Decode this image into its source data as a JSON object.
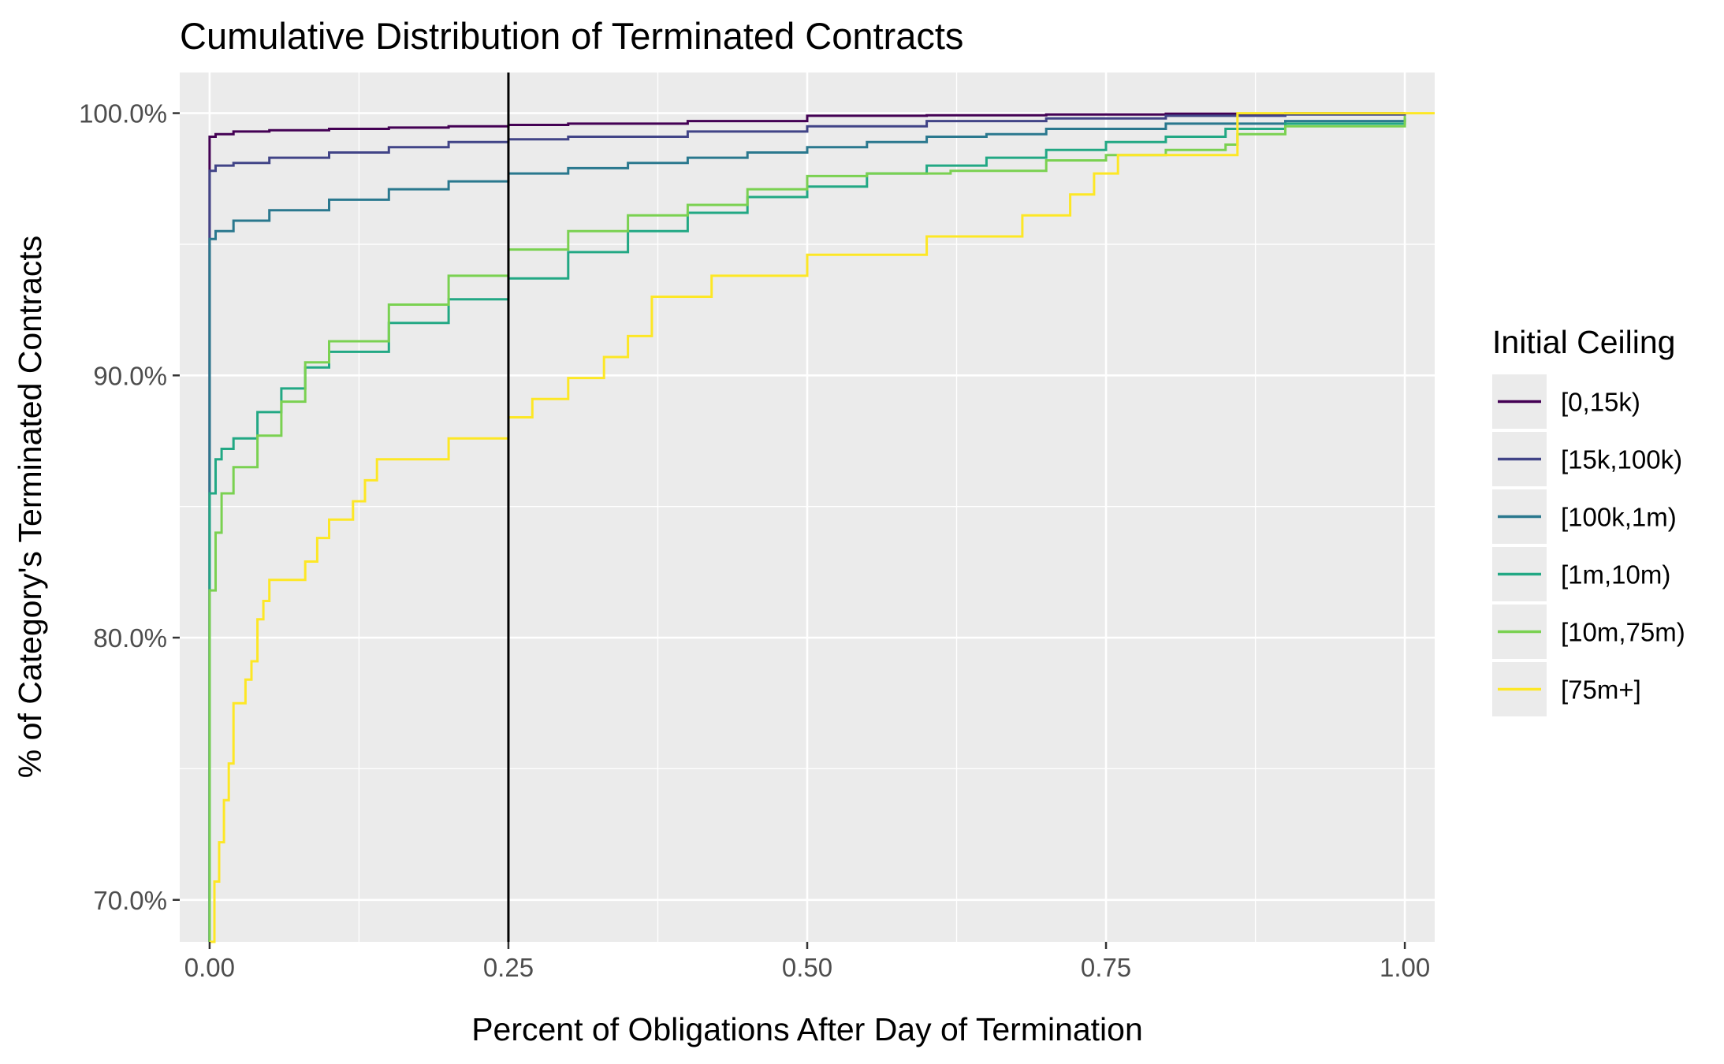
{
  "chart_data": {
    "type": "line",
    "title": "Cumulative Distribution of Terminated Contracts",
    "xlabel": "Percent of Obligations After Day of Termination",
    "ylabel": "% of Category's Terminated Contracts",
    "xlim": [
      -0.025,
      1.025
    ],
    "ylim": [
      0.684,
      1.0155
    ],
    "x_ticks": [
      0.0,
      0.25,
      0.5,
      0.75,
      1.0
    ],
    "x_tick_labels": [
      "0.00",
      "0.25",
      "0.50",
      "0.75",
      "1.00"
    ],
    "y_ticks": [
      0.7,
      0.8,
      0.9,
      1.0
    ],
    "y_tick_labels": [
      "70.0%",
      "80.0%",
      "90.0%",
      "100.0%"
    ],
    "grid": true,
    "vline": 0.25,
    "legend": {
      "title": "Initial Ceiling",
      "position": "right"
    },
    "background": "#ebebeb",
    "series": [
      {
        "name": "[0,15k)",
        "color": "#440154",
        "x": [
          0,
          0,
          0.005,
          0.02,
          0.05,
          0.1,
          0.15,
          0.2,
          0.25,
          0.3,
          0.4,
          0.5,
          0.5,
          0.6,
          0.7,
          0.8,
          0.9,
          1.0
        ],
        "y": [
          0.684,
          0.991,
          0.992,
          0.993,
          0.9935,
          0.994,
          0.9945,
          0.995,
          0.9955,
          0.996,
          0.997,
          0.998,
          0.999,
          0.9992,
          0.9995,
          0.9998,
          1.0,
          1.0
        ]
      },
      {
        "name": "[15k,100k)",
        "color": "#414487",
        "x": [
          0,
          0,
          0.005,
          0.02,
          0.05,
          0.1,
          0.15,
          0.2,
          0.25,
          0.3,
          0.4,
          0.5,
          0.6,
          0.7,
          0.8,
          0.9,
          1.0
        ],
        "y": [
          0.684,
          0.978,
          0.98,
          0.981,
          0.983,
          0.985,
          0.987,
          0.989,
          0.99,
          0.991,
          0.993,
          0.995,
          0.997,
          0.998,
          0.999,
          0.9995,
          1.0
        ]
      },
      {
        "name": "[100k,1m)",
        "color": "#2a788e",
        "x": [
          0,
          0,
          0.005,
          0.02,
          0.05,
          0.1,
          0.15,
          0.2,
          0.25,
          0.3,
          0.35,
          0.4,
          0.45,
          0.5,
          0.55,
          0.6,
          0.65,
          0.7,
          0.8,
          0.9,
          1.0
        ],
        "y": [
          0.684,
          0.952,
          0.955,
          0.959,
          0.963,
          0.967,
          0.971,
          0.974,
          0.977,
          0.979,
          0.981,
          0.983,
          0.985,
          0.987,
          0.989,
          0.991,
          0.992,
          0.994,
          0.996,
          0.997,
          0.998
        ]
      },
      {
        "name": "[1m,10m)",
        "color": "#22a884",
        "x": [
          0,
          0,
          0.005,
          0.01,
          0.02,
          0.04,
          0.06,
          0.08,
          0.1,
          0.15,
          0.2,
          0.25,
          0.3,
          0.35,
          0.4,
          0.45,
          0.5,
          0.55,
          0.6,
          0.65,
          0.7,
          0.75,
          0.8,
          0.85,
          0.9,
          1.0
        ],
        "y": [
          0.684,
          0.855,
          0.868,
          0.872,
          0.876,
          0.886,
          0.895,
          0.903,
          0.909,
          0.92,
          0.929,
          0.937,
          0.947,
          0.955,
          0.962,
          0.968,
          0.972,
          0.977,
          0.98,
          0.983,
          0.986,
          0.989,
          0.991,
          0.994,
          0.996,
          0.998
        ]
      },
      {
        "name": "[10m,75m)",
        "color": "#7ad151",
        "x": [
          0,
          0,
          0.005,
          0.01,
          0.02,
          0.04,
          0.06,
          0.08,
          0.1,
          0.15,
          0.2,
          0.25,
          0.3,
          0.35,
          0.4,
          0.45,
          0.5,
          0.55,
          0.6,
          0.62,
          0.7,
          0.7,
          0.75,
          0.8,
          0.85,
          0.86,
          0.9,
          1.0
        ],
        "y": [
          0.684,
          0.818,
          0.84,
          0.855,
          0.865,
          0.877,
          0.89,
          0.905,
          0.913,
          0.927,
          0.938,
          0.948,
          0.955,
          0.961,
          0.965,
          0.971,
          0.976,
          0.977,
          0.977,
          0.978,
          0.979,
          0.982,
          0.984,
          0.986,
          0.988,
          0.992,
          0.995,
          0.999
        ]
      },
      {
        "name": "[75m+]",
        "color": "#fde725",
        "x": [
          0,
          0.004,
          0.008,
          0.012,
          0.016,
          0.02,
          0.03,
          0.035,
          0.04,
          0.045,
          0.05,
          0.06,
          0.07,
          0.08,
          0.09,
          0.1,
          0.12,
          0.13,
          0.14,
          0.15,
          0.2,
          0.25,
          0.27,
          0.3,
          0.33,
          0.35,
          0.37,
          0.4,
          0.42,
          0.5,
          0.6,
          0.62,
          0.68,
          0.72,
          0.74,
          0.76,
          0.8,
          0.86,
          0.87,
          0.9,
          1.0,
          1.025
        ],
        "y": [
          0.684,
          0.707,
          0.722,
          0.738,
          0.752,
          0.775,
          0.784,
          0.791,
          0.807,
          0.814,
          0.822,
          0.822,
          0.822,
          0.829,
          0.838,
          0.845,
          0.852,
          0.86,
          0.868,
          0.868,
          0.876,
          0.884,
          0.891,
          0.899,
          0.907,
          0.915,
          0.93,
          0.93,
          0.938,
          0.946,
          0.953,
          0.953,
          0.961,
          0.969,
          0.977,
          0.984,
          0.984,
          1.0,
          1.0,
          1.0,
          1.0,
          1.0
        ]
      }
    ]
  }
}
